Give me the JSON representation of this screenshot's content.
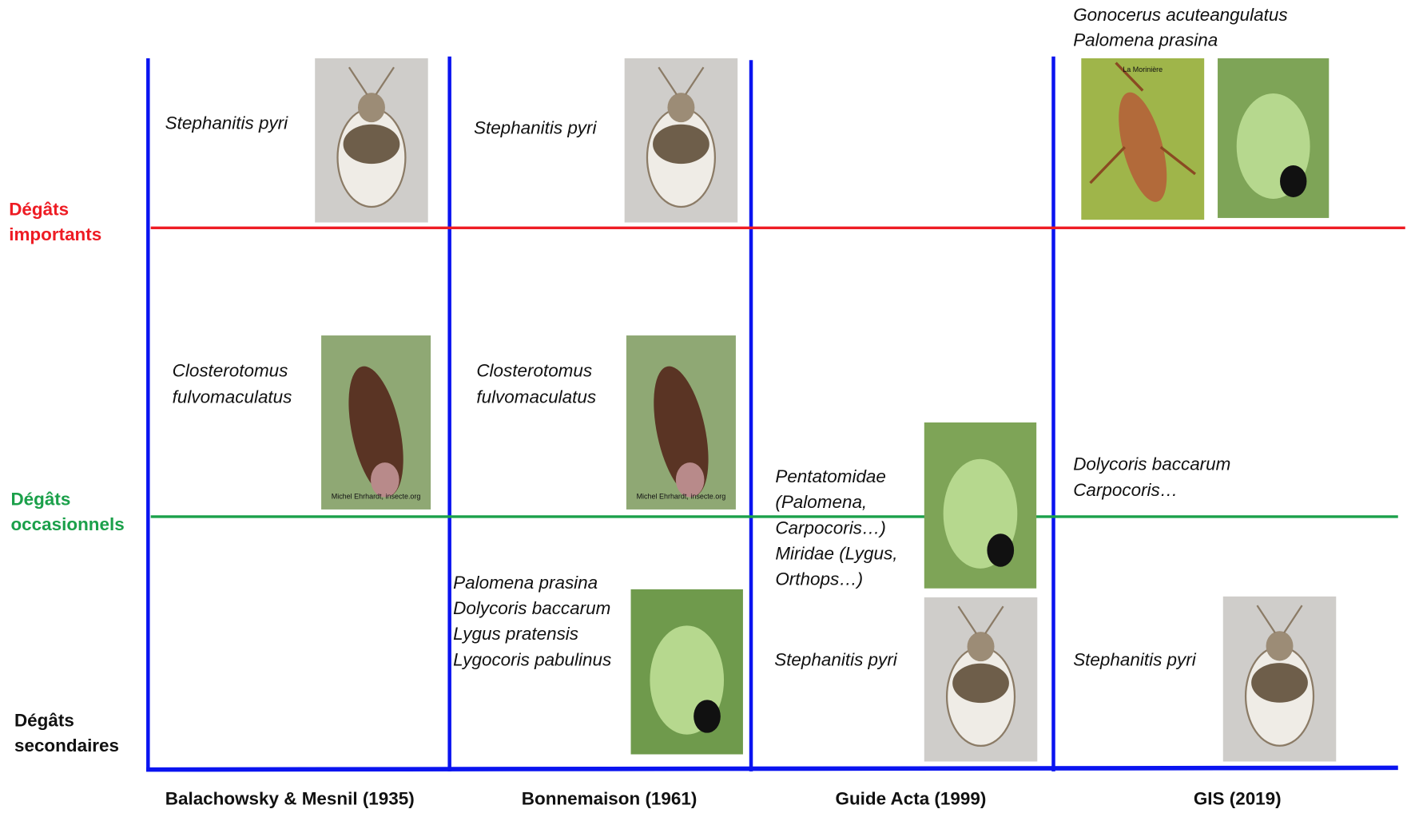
{
  "rows": [
    {
      "lines": [
        "Dégâts",
        "importants"
      ]
    },
    {
      "lines": [
        "Dégâts",
        "occasionnels"
      ]
    },
    {
      "lines": [
        "Dégâts",
        "secondaires"
      ]
    }
  ],
  "columns": [
    {
      "label": "Balachowsky & Mesnil (1935)"
    },
    {
      "label": "Bonnemaison (1961)"
    },
    {
      "label": "Guide Acta (1999)"
    },
    {
      "label": "GIS (2019)"
    }
  ],
  "entries": [
    {
      "lines": [
        "Stephanitis pyri"
      ]
    },
    {
      "lines": [
        "Closterotomus",
        "fulvomaculatus"
      ],
      "photo_captions": [
        "Michel Ehrhardt, insecte.org"
      ]
    },
    {
      "lines": [
        "Stephanitis pyri"
      ]
    },
    {
      "lines": [
        "Closterotomus",
        "fulvomaculatus"
      ],
      "photo_captions": [
        "Michel Ehrhardt, insecte.org"
      ]
    },
    {
      "lines": [
        "Palomena prasina",
        "Dolycoris baccarum",
        "Lygus pratensis",
        "Lygocoris pabulinus"
      ]
    },
    {
      "lines": [
        "Pentatomidae",
        "(Palomena,",
        "Carpocoris…)",
        "Miridae (Lygus,",
        "Orthops…)"
      ]
    },
    {
      "lines": [
        "Stephanitis pyri"
      ]
    },
    {
      "lines": [
        "Gonocerus acuteangulatus",
        "Palomena prasina"
      ],
      "photo_captions": [
        "La Morinière"
      ]
    },
    {
      "lines": [
        "Dolycoris baccarum",
        "Carpocoris…"
      ]
    },
    {
      "lines": [
        "Stephanitis pyri"
      ]
    }
  ]
}
